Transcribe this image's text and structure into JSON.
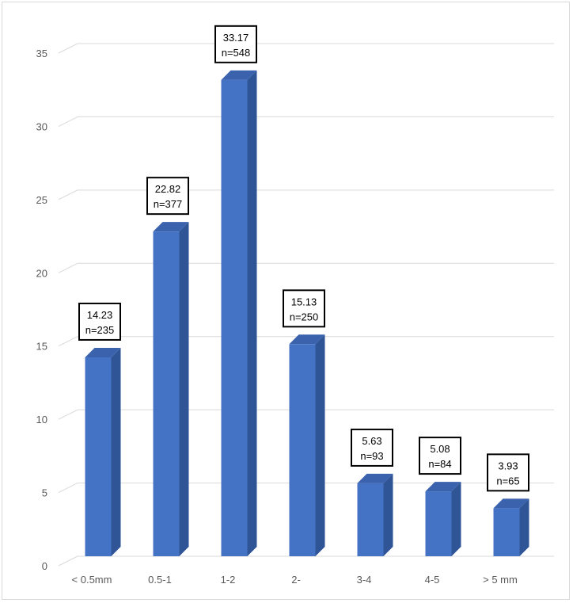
{
  "chart_data": {
    "type": "bar",
    "categories": [
      "< 0.5mm",
      "0.5-1",
      "1-2",
      "2-",
      "3-4",
      "4-5",
      "> 5 mm"
    ],
    "values": [
      14.23,
      22.82,
      33.17,
      15.13,
      5.63,
      5.08,
      3.93
    ],
    "counts": [
      "n=235",
      "n=377",
      "n=548",
      "n=250",
      "n=93",
      "n=84",
      "n=65"
    ],
    "value_labels": [
      "14.23",
      "22.82",
      "33.17",
      "15.13",
      "5.63",
      "5.08",
      "3.93"
    ],
    "ylim": [
      0,
      35
    ],
    "yticks": [
      "0",
      "5",
      "10",
      "15",
      "20",
      "25",
      "30",
      "35"
    ],
    "grid": true,
    "legend": "none",
    "title": "",
    "xlabel": "",
    "ylabel": "",
    "colors": {
      "bar_front": "#4472c4",
      "bar_side": "#2f5597",
      "bar_top": "#3a62ad",
      "grid": "#d9d9d9",
      "label_border": "#000000"
    }
  }
}
